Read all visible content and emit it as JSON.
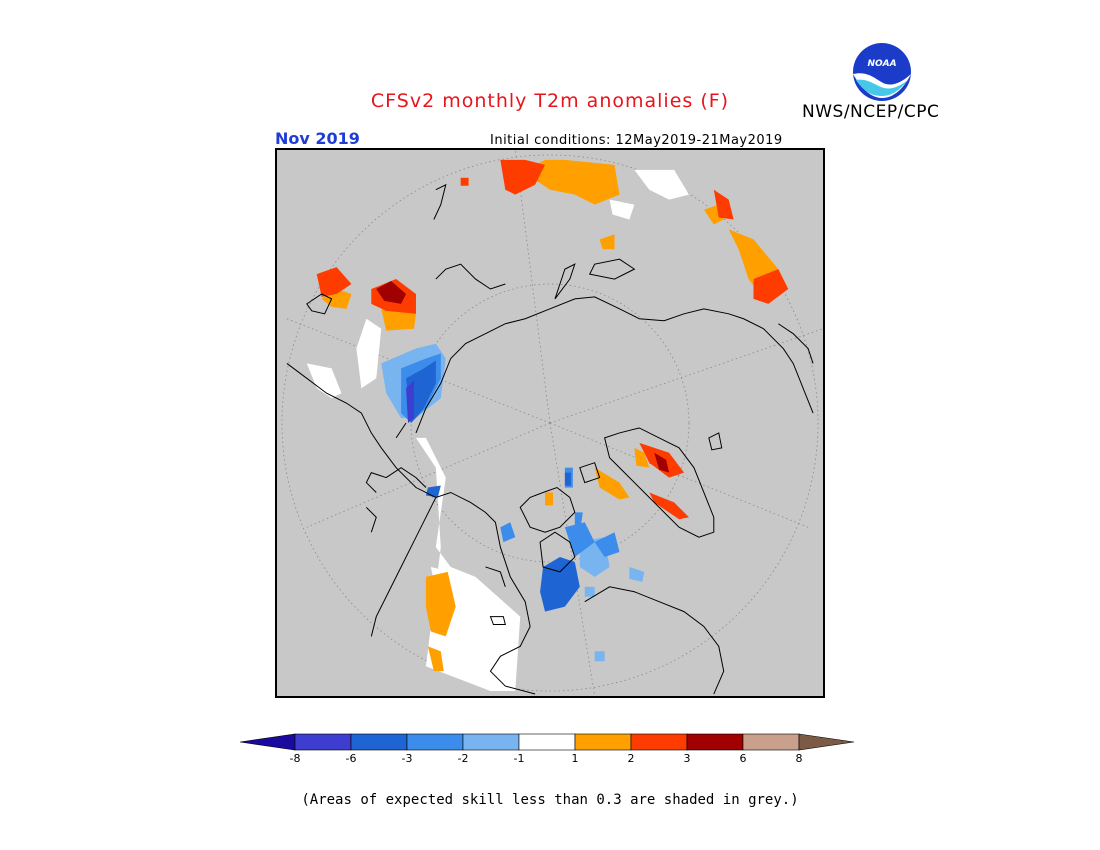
{
  "header": {
    "title": "CFSv2 monthly T2m anomalies (F)",
    "agency": "NWS/NCEP/CPC",
    "month": "Nov 2019",
    "initial_conditions": "Initial conditions: 12May2019-21May2019"
  },
  "logo": {
    "icon": "noaa-logo-icon",
    "text": "NOAA"
  },
  "legend": {
    "ticks": [
      "-8",
      "-6",
      "-3",
      "-2",
      "-1",
      "1",
      "2",
      "3",
      "6",
      "8"
    ],
    "colors": [
      "#1a0aa0",
      "#3d3dd0",
      "#1e64d2",
      "#3c8ceb",
      "#78b4f0",
      "#ffffff",
      "#ffa000",
      "#ff3c00",
      "#a00000",
      "#c8a08c",
      "#7d5a46"
    ]
  },
  "map": {
    "background_color": "#c8c8c8",
    "skill_note": "(Areas of expected skill less than 0.3 are shaded in grey.)"
  }
}
